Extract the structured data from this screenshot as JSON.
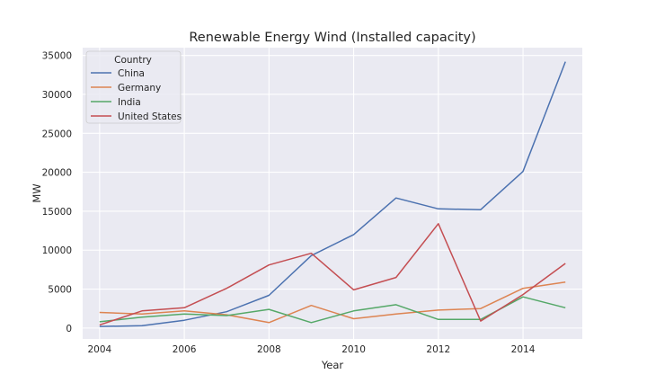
{
  "chart_data": {
    "type": "line",
    "title": "Renewable Energy Wind  (Installed capacity)",
    "xlabel": "Year",
    "ylabel": "MW",
    "x": [
      2004,
      2005,
      2006,
      2007,
      2008,
      2009,
      2010,
      2011,
      2012,
      2013,
      2014,
      2015
    ],
    "xlim": [
      2003.6,
      2015.4
    ],
    "ylim": [
      -1400,
      36000
    ],
    "xticks": [
      2004,
      2006,
      2008,
      2010,
      2012,
      2014
    ],
    "xtick_labels": [
      "2004",
      "2006",
      "2008",
      "2010",
      "2012",
      "2014"
    ],
    "yticks": [
      0,
      5000,
      10000,
      15000,
      20000,
      25000,
      30000,
      35000
    ],
    "ytick_labels": [
      "0",
      "5000",
      "10000",
      "15000",
      "20000",
      "25000",
      "30000",
      "35000"
    ],
    "grid": true,
    "legend": {
      "title": "Country",
      "placement": "top-left"
    },
    "series": [
      {
        "name": "China",
        "color": "#4c72b0",
        "values": [
          200,
          300,
          1000,
          2100,
          4200,
          9300,
          12000,
          16700,
          15300,
          15200,
          20100,
          34200
        ]
      },
      {
        "name": "Germany",
        "color": "#dd8452",
        "values": [
          2000,
          1800,
          2200,
          1700,
          700,
          2900,
          1200,
          1800,
          2300,
          2500,
          5100,
          5900
        ]
      },
      {
        "name": "India",
        "color": "#55a868",
        "values": [
          800,
          1400,
          1800,
          1600,
          2400,
          700,
          2200,
          3000,
          1100,
          1100,
          4000,
          2600
        ]
      },
      {
        "name": "United States",
        "color": "#c44e52",
        "values": [
          400,
          2200,
          2600,
          5100,
          8100,
          9600,
          4900,
          6500,
          13400,
          900,
          4300,
          8300
        ]
      }
    ]
  }
}
